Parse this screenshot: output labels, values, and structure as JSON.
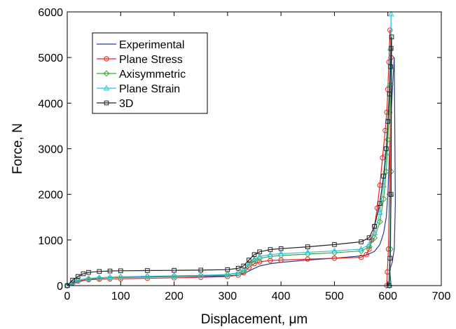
{
  "chart_data": {
    "type": "line",
    "xlabel": "Displacement, μm",
    "ylabel": "Force, N",
    "xlim": [
      0,
      700
    ],
    "ylim": [
      0,
      6000
    ],
    "xticks": [
      0,
      100,
      200,
      300,
      400,
      500,
      600,
      700
    ],
    "yticks": [
      0,
      1000,
      2000,
      3000,
      4000,
      5000,
      6000
    ],
    "grid": false,
    "legend": "top-left",
    "series": [
      {
        "name": "Experimental",
        "color": "#2b3d8f",
        "marker": "none",
        "x": [
          0,
          15,
          30,
          50,
          70,
          100,
          150,
          200,
          250,
          300,
          320,
          330,
          345,
          360,
          380,
          400,
          450,
          500,
          540,
          560,
          575,
          585,
          592,
          597,
          600,
          602,
          604,
          606,
          608,
          610,
          612,
          614,
          612,
          608,
          605,
          604,
          606
        ],
        "y": [
          0,
          60,
          110,
          150,
          170,
          180,
          190,
          200,
          205,
          215,
          230,
          260,
          350,
          430,
          480,
          510,
          560,
          600,
          640,
          670,
          750,
          900,
          1150,
          1500,
          2000,
          2600,
          3200,
          3700,
          4200,
          4600,
          5000,
          1800,
          800,
          500,
          400,
          300,
          0
        ]
      },
      {
        "name": "Plane Stress",
        "color": "#e8211e",
        "marker": "circle",
        "x": [
          0,
          10,
          20,
          40,
          60,
          80,
          100,
          150,
          200,
          250,
          300,
          320,
          330,
          340,
          350,
          360,
          380,
          400,
          450,
          500,
          550,
          560,
          565,
          570,
          575,
          580,
          585,
          590,
          595,
          598,
          600,
          602,
          604,
          606,
          603,
          601,
          599,
          598
        ],
        "y": [
          0,
          60,
          100,
          130,
          140,
          145,
          150,
          160,
          170,
          180,
          200,
          230,
          280,
          400,
          480,
          520,
          550,
          560,
          580,
          600,
          620,
          680,
          800,
          1000,
          1300,
          1700,
          2200,
          2800,
          3400,
          3800,
          4300,
          4900,
          5600,
          5000,
          2000,
          800,
          300,
          0
        ]
      },
      {
        "name": "Axisymmetric",
        "color": "#3fa535",
        "marker": "diamond",
        "x": [
          0,
          10,
          20,
          40,
          60,
          80,
          100,
          150,
          200,
          250,
          300,
          320,
          330,
          340,
          350,
          360,
          380,
          400,
          450,
          500,
          550,
          565,
          575,
          585,
          592,
          597,
          600,
          603,
          605,
          606,
          605,
          603
        ],
        "y": [
          0,
          70,
          120,
          150,
          165,
          175,
          185,
          200,
          210,
          220,
          240,
          270,
          320,
          450,
          550,
          600,
          640,
          660,
          690,
          720,
          760,
          850,
          1050,
          1400,
          1900,
          2500,
          3200,
          3800,
          4400,
          2500,
          800,
          0
        ]
      },
      {
        "name": "Plane Strain",
        "color": "#35c2d9",
        "marker": "triangle",
        "x": [
          0,
          10,
          20,
          40,
          60,
          80,
          100,
          150,
          200,
          250,
          300,
          320,
          330,
          340,
          350,
          360,
          380,
          400,
          450,
          500,
          550,
          565,
          575,
          585,
          592,
          597,
          600,
          603,
          605,
          606,
          605,
          603
        ],
        "y": [
          0,
          70,
          120,
          160,
          175,
          185,
          195,
          205,
          215,
          225,
          245,
          280,
          330,
          480,
          580,
          640,
          680,
          700,
          730,
          760,
          800,
          900,
          1150,
          1600,
          2200,
          2900,
          3600,
          4400,
          5200,
          5950,
          2000,
          0
        ]
      },
      {
        "name": "3D",
        "color": "#222222",
        "marker": "square",
        "x": [
          0,
          10,
          20,
          30,
          40,
          60,
          80,
          100,
          150,
          200,
          250,
          300,
          320,
          330,
          340,
          350,
          360,
          380,
          400,
          450,
          500,
          550,
          565,
          575,
          585,
          592,
          597,
          600,
          603,
          605,
          606,
          607,
          606,
          604,
          602
        ],
        "y": [
          0,
          120,
          200,
          260,
          290,
          310,
          320,
          325,
          330,
          335,
          340,
          350,
          380,
          430,
          560,
          680,
          740,
          790,
          810,
          850,
          900,
          960,
          1050,
          1300,
          1800,
          2400,
          3000,
          3600,
          4200,
          4800,
          5200,
          5450,
          2000,
          600,
          0
        ]
      }
    ]
  }
}
